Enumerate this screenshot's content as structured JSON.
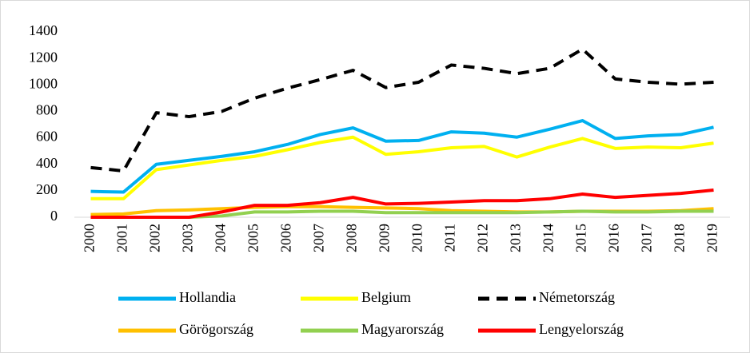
{
  "chart_data": {
    "type": "line",
    "x": [
      "2000",
      "2001",
      "2002",
      "2003",
      "2004",
      "2005",
      "2006",
      "2007",
      "2008",
      "2009",
      "2010",
      "2011",
      "2012",
      "2013",
      "2014",
      "2015",
      "2016",
      "2017",
      "2018",
      "2019"
    ],
    "ylim": [
      0,
      1400
    ],
    "yticks": [
      0,
      200,
      400,
      600,
      800,
      1000,
      1200,
      1400
    ],
    "grid": false,
    "legend": "bottom",
    "series": [
      {
        "name": "Hollandia",
        "color": "#00b0f0",
        "dash": false,
        "values": [
          195,
          190,
          400,
          430,
          460,
          495,
          550,
          625,
          675,
          575,
          580,
          645,
          635,
          605,
          665,
          730,
          595,
          615,
          625,
          680
        ]
      },
      {
        "name": "Belgium",
        "color": "#ffff00",
        "dash": false,
        "values": [
          140,
          140,
          360,
          395,
          430,
          460,
          510,
          565,
          605,
          475,
          495,
          525,
          535,
          455,
          530,
          595,
          520,
          530,
          525,
          560
        ]
      },
      {
        "name": "Németország",
        "color": "#000000",
        "dash": true,
        "values": [
          375,
          350,
          790,
          760,
          800,
          900,
          975,
          1040,
          1110,
          980,
          1020,
          1150,
          1125,
          1085,
          1125,
          1270,
          1045,
          1020,
          1005,
          1020
        ]
      },
      {
        "name": "Görögország",
        "color": "#ffc000",
        "dash": false,
        "values": [
          20,
          25,
          50,
          55,
          65,
          75,
          80,
          80,
          75,
          70,
          65,
          50,
          45,
          40,
          40,
          45,
          45,
          45,
          50,
          65
        ]
      },
      {
        "name": "Magyarország",
        "color": "#92d050",
        "dash": false,
        "values": [
          0,
          0,
          0,
          0,
          10,
          40,
          40,
          45,
          45,
          35,
          35,
          35,
          35,
          35,
          40,
          45,
          40,
          40,
          45,
          45
        ]
      },
      {
        "name": "Lengyelország",
        "color": "#ff0000",
        "dash": false,
        "values": [
          0,
          0,
          0,
          0,
          40,
          90,
          90,
          110,
          150,
          100,
          105,
          115,
          125,
          125,
          140,
          175,
          150,
          165,
          180,
          205
        ]
      }
    ]
  }
}
